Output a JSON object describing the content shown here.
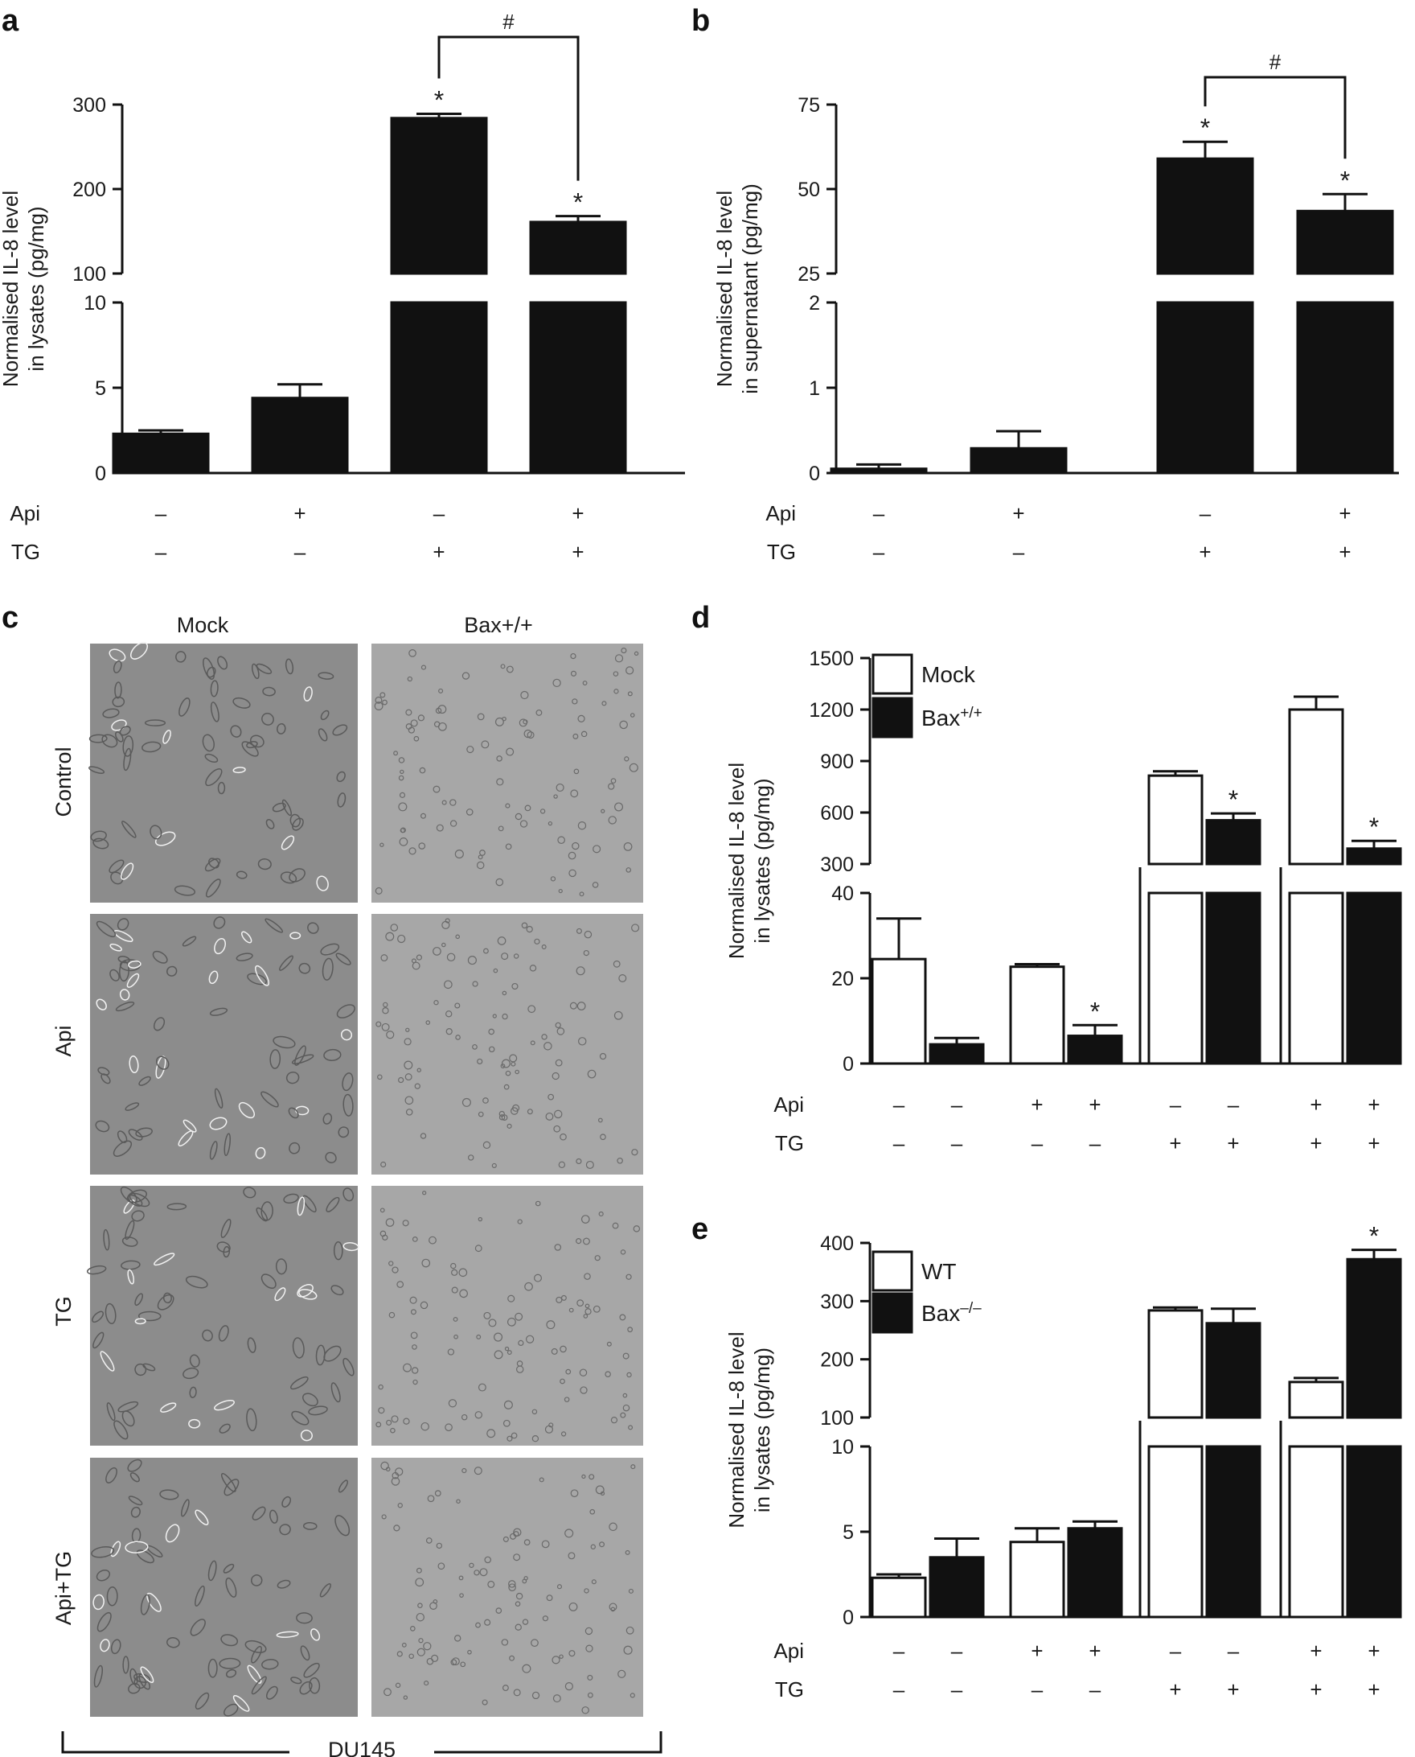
{
  "panel_labels": {
    "a": "a",
    "b": "b",
    "c": "c",
    "d": "d",
    "e": "e"
  },
  "row_labels": {
    "api": "Api",
    "tg": "TG"
  },
  "signs": {
    "minus": "–",
    "plus": "+"
  },
  "panel_c": {
    "columns": [
      "Mock",
      "Bax+/+"
    ],
    "rows": [
      "Control",
      "Api",
      "TG",
      "Api+TG"
    ],
    "cell_line": "DU145",
    "image_tones": [
      "#8c8c8c",
      "#a7a7a7"
    ]
  },
  "chart_data": [
    {
      "id": "a",
      "type": "bar",
      "ylabel_lines": [
        "Normalised IL-8 level",
        "in lysates (pg/mg)"
      ],
      "lower_axis": {
        "ylim": [
          0,
          10
        ],
        "ticks": [
          0,
          5,
          10
        ]
      },
      "upper_axis": {
        "ylim": [
          100,
          300
        ],
        "ticks": [
          100,
          200,
          300
        ]
      },
      "bars": [
        {
          "value": 2.3,
          "error": 0.2,
          "fill": "#111111",
          "star": false
        },
        {
          "value": 4.4,
          "error": 0.8,
          "fill": "#111111",
          "star": false
        },
        {
          "value": 284,
          "error": 5,
          "fill": "#111111",
          "star": true
        },
        {
          "value": 161,
          "error": 7,
          "fill": "#111111",
          "star": true
        }
      ],
      "api": [
        "–",
        "+",
        "–",
        "+"
      ],
      "tg": [
        "–",
        "–",
        "+",
        "+"
      ],
      "bracket": {
        "from": 2,
        "to": 3,
        "label": "#"
      },
      "star_symbol": "*"
    },
    {
      "id": "b",
      "type": "bar",
      "ylabel_lines": [
        "Normalised IL-8 level",
        "in supernatant (pg/mg)"
      ],
      "lower_axis": {
        "ylim": [
          0,
          2
        ],
        "ticks": [
          0,
          1,
          2
        ]
      },
      "upper_axis": {
        "ylim": [
          25,
          75
        ],
        "ticks": [
          25,
          50,
          75
        ]
      },
      "bars": [
        {
          "value": 0.05,
          "error": 0.05,
          "fill": "#111111",
          "star": false
        },
        {
          "value": 0.29,
          "error": 0.2,
          "fill": "#111111",
          "star": false
        },
        {
          "value": 59,
          "error": 5,
          "fill": "#111111",
          "star": true
        },
        {
          "value": 43.5,
          "error": 5,
          "fill": "#111111",
          "star": true
        }
      ],
      "api": [
        "–",
        "+",
        "–",
        "+"
      ],
      "tg": [
        "–",
        "–",
        "+",
        "+"
      ],
      "bracket": {
        "from": 2,
        "to": 3,
        "label": "#"
      },
      "star_symbol": "*"
    },
    {
      "id": "d",
      "type": "bar",
      "ylabel_lines": [
        "Normalised IL-8 level",
        "in lysates (pg/mg)"
      ],
      "lower_axis": {
        "ylim": [
          0,
          40
        ],
        "ticks": [
          0,
          20,
          40
        ]
      },
      "upper_axis": {
        "ylim": [
          300,
          1500
        ],
        "ticks": [
          300,
          600,
          900,
          1200,
          1500
        ]
      },
      "legend": [
        {
          "name": "Mock",
          "fill": "#ffffff"
        },
        {
          "name": "Bax",
          "sup": "+/+",
          "fill": "#111111"
        }
      ],
      "groups": [
        [
          {
            "value": 24.5,
            "error": 9.5,
            "fill": "#ffffff",
            "star": false
          },
          {
            "value": 4.5,
            "error": 1.5,
            "fill": "#111111",
            "star": false
          }
        ],
        [
          {
            "value": 22.7,
            "error": 0.6,
            "fill": "#ffffff",
            "star": false
          },
          {
            "value": 6.5,
            "error": 2.5,
            "fill": "#111111",
            "star": true
          }
        ],
        [
          {
            "value": 815,
            "error": 25,
            "fill": "#ffffff",
            "star": false
          },
          {
            "value": 555,
            "error": 40,
            "fill": "#111111",
            "star": true
          }
        ],
        [
          {
            "value": 1200,
            "error": 75,
            "fill": "#ffffff",
            "star": false
          },
          {
            "value": 390,
            "error": 45,
            "fill": "#111111",
            "star": true
          }
        ]
      ],
      "api": [
        "–",
        "–",
        "+",
        "+",
        "–",
        "–",
        "+",
        "+"
      ],
      "tg": [
        "–",
        "–",
        "–",
        "–",
        "+",
        "+",
        "+",
        "+"
      ],
      "star_symbol": "*"
    },
    {
      "id": "e",
      "type": "bar",
      "ylabel_lines": [
        "Normalised IL-8 level",
        "in lysates (pg/mg)"
      ],
      "lower_axis": {
        "ylim": [
          0,
          10
        ],
        "ticks": [
          0,
          5,
          10
        ]
      },
      "upper_axis": {
        "ylim": [
          100,
          400
        ],
        "ticks": [
          100,
          200,
          300,
          400
        ]
      },
      "legend": [
        {
          "name": "WT",
          "fill": "#ffffff"
        },
        {
          "name": "Bax",
          "sup": "–/–",
          "fill": "#111111"
        }
      ],
      "groups": [
        [
          {
            "value": 2.3,
            "error": 0.2,
            "fill": "#ffffff",
            "star": false
          },
          {
            "value": 3.5,
            "error": 1.1,
            "fill": "#111111",
            "star": false
          }
        ],
        [
          {
            "value": 4.4,
            "error": 0.8,
            "fill": "#ffffff",
            "star": false
          },
          {
            "value": 5.2,
            "error": 0.4,
            "fill": "#111111",
            "star": false
          }
        ],
        [
          {
            "value": 284,
            "error": 5,
            "fill": "#ffffff",
            "star": false
          },
          {
            "value": 262,
            "error": 25,
            "fill": "#111111",
            "star": false
          }
        ],
        [
          {
            "value": 161,
            "error": 7,
            "fill": "#ffffff",
            "star": false
          },
          {
            "value": 372,
            "error": 16,
            "fill": "#111111",
            "star": true
          }
        ]
      ],
      "api": [
        "–",
        "–",
        "+",
        "+",
        "–",
        "–",
        "+",
        "+"
      ],
      "tg": [
        "–",
        "–",
        "–",
        "–",
        "+",
        "+",
        "+",
        "+"
      ],
      "star_symbol": "*"
    }
  ]
}
